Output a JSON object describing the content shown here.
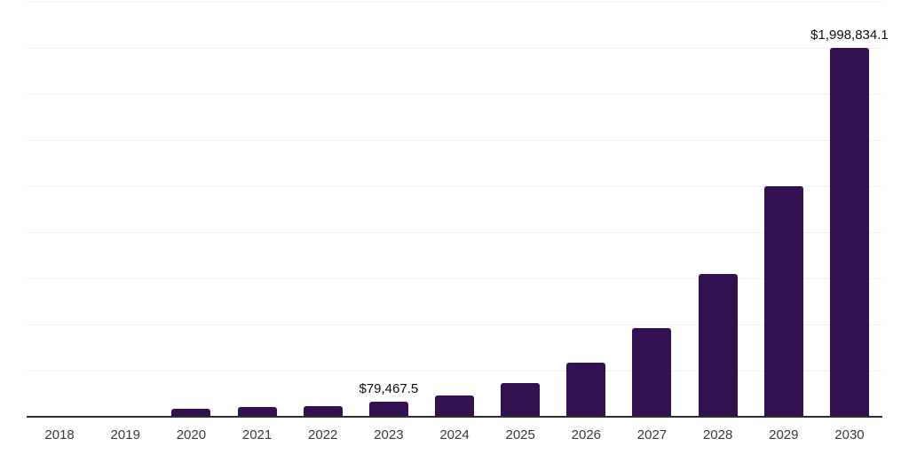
{
  "chart_data": {
    "type": "bar",
    "categories": [
      "2018",
      "2019",
      "2020",
      "2021",
      "2022",
      "2023",
      "2024",
      "2025",
      "2026",
      "2027",
      "2028",
      "2029",
      "2030"
    ],
    "values": [
      1500,
      3000,
      45000,
      50500,
      58300,
      79467.5,
      115000,
      185000,
      295000,
      480000,
      775000,
      1250000,
      1998834.1
    ],
    "data_labels": [
      "",
      "",
      "",
      "",
      "",
      "$79,467.5",
      "",
      "",
      "",
      "",
      "",
      "",
      "$1,998,834.1"
    ],
    "title": "",
    "xlabel": "",
    "ylabel": "",
    "ylim": [
      0,
      2250000
    ],
    "gridline_interval": 250000,
    "gridline_count": 9,
    "grid": "horizontal",
    "legend": "none",
    "colors": {
      "bar": "#331151",
      "axis": "#2e2e2e",
      "gridline": "#f1f1f2",
      "tick_label": "#3b3b3b",
      "value_label": "#0f0f0f"
    }
  }
}
